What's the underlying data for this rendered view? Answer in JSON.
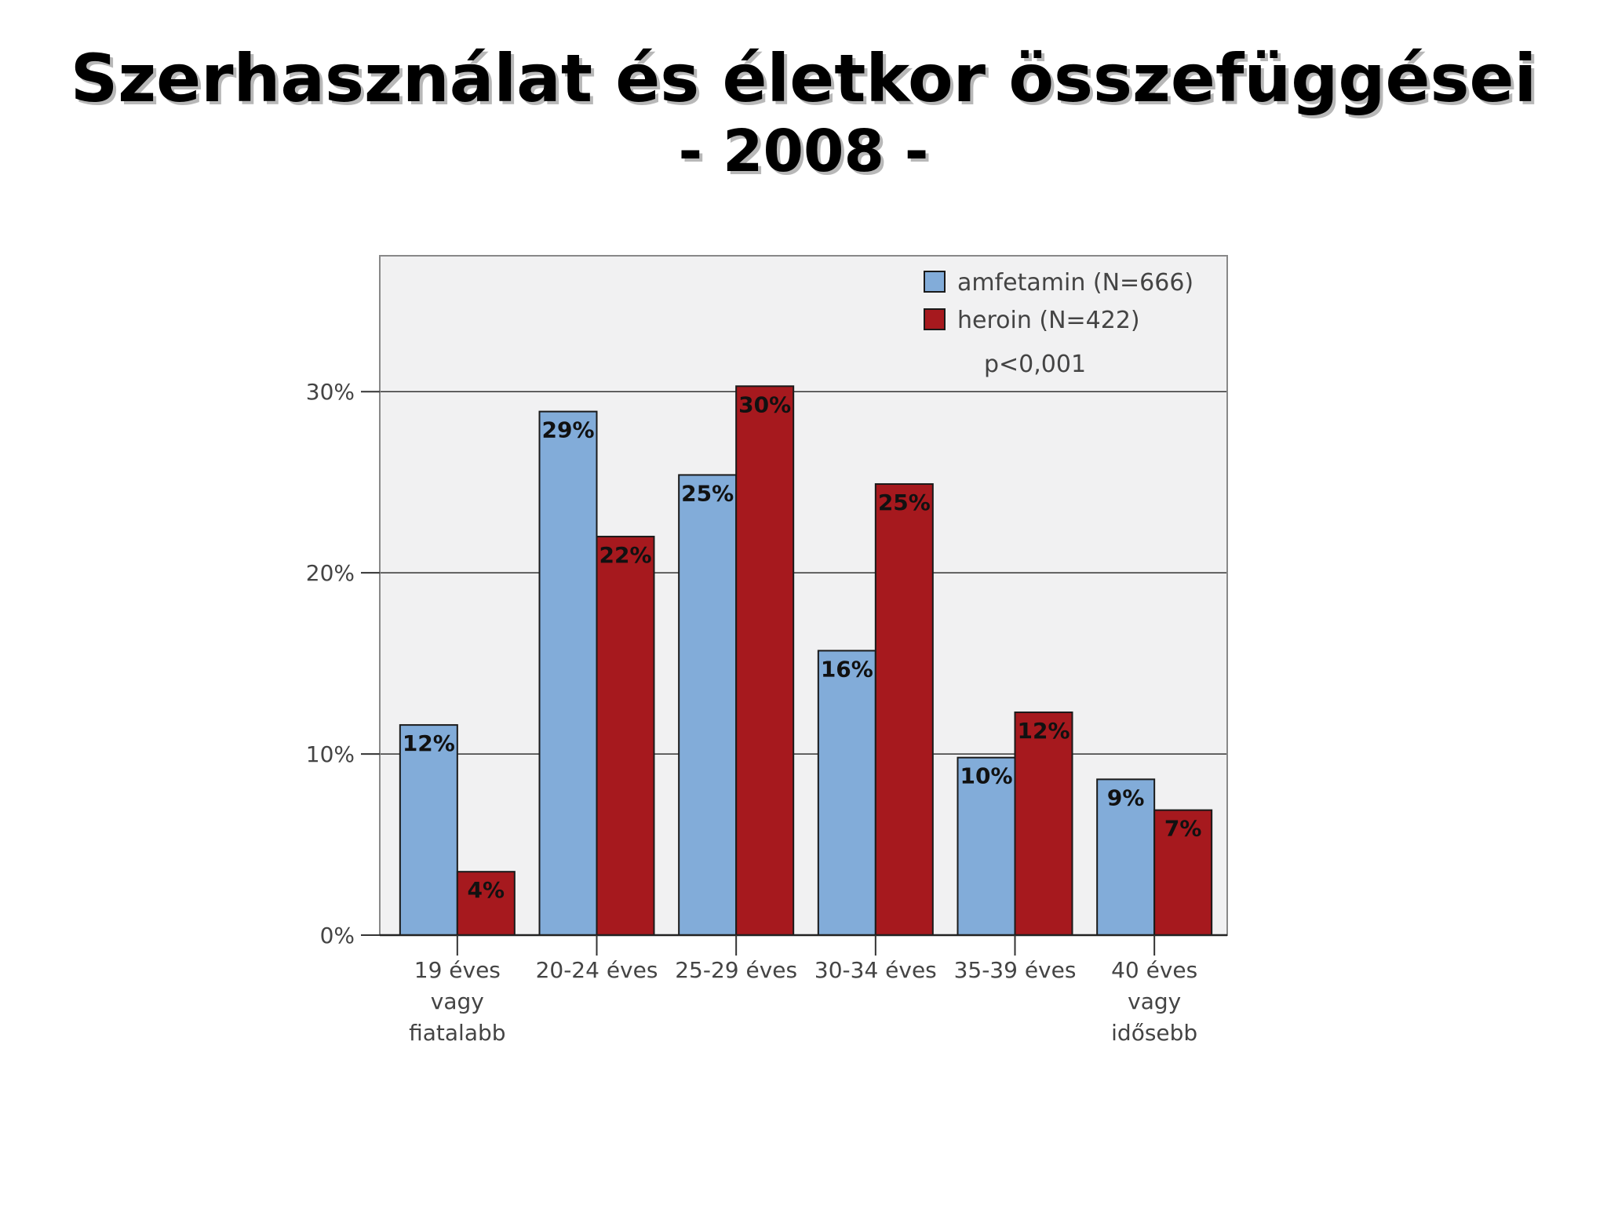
{
  "slide": {
    "title": "Szerhasználat és életkor összefüggései",
    "subtitle": "- 2008 -"
  },
  "chart_data": {
    "type": "bar",
    "categories": [
      [
        "19 éves",
        "vagy",
        "fiatalabb"
      ],
      [
        "20-24 éves"
      ],
      [
        "25-29 éves"
      ],
      [
        "30-34 éves"
      ],
      [
        "35-39 éves"
      ],
      [
        "40 éves",
        "vagy",
        "idősebb"
      ]
    ],
    "series": [
      {
        "name": "amfetamin (N=666)",
        "color": "#82acd9",
        "values": [
          11.6,
          28.9,
          25.4,
          15.7,
          9.8,
          8.6
        ],
        "labels": [
          "12%",
          "29%",
          "25%",
          "16%",
          "10%",
          "9%"
        ]
      },
      {
        "name": "heroin (N=422)",
        "color": "#a6191e",
        "values": [
          3.5,
          22.0,
          30.3,
          24.9,
          12.3,
          6.9
        ],
        "labels": [
          "4%",
          "22%",
          "30%",
          "25%",
          "12%",
          "7%"
        ]
      }
    ],
    "annotation": "p<0,001",
    "ylim": [
      0,
      37.5
    ],
    "yticks": [
      0,
      10,
      20,
      30
    ],
    "ytick_labels": [
      "0%",
      "10%",
      "20%",
      "30%"
    ],
    "grid": true,
    "legend_position": "top-right",
    "plot_background": "#f1f1f2"
  }
}
